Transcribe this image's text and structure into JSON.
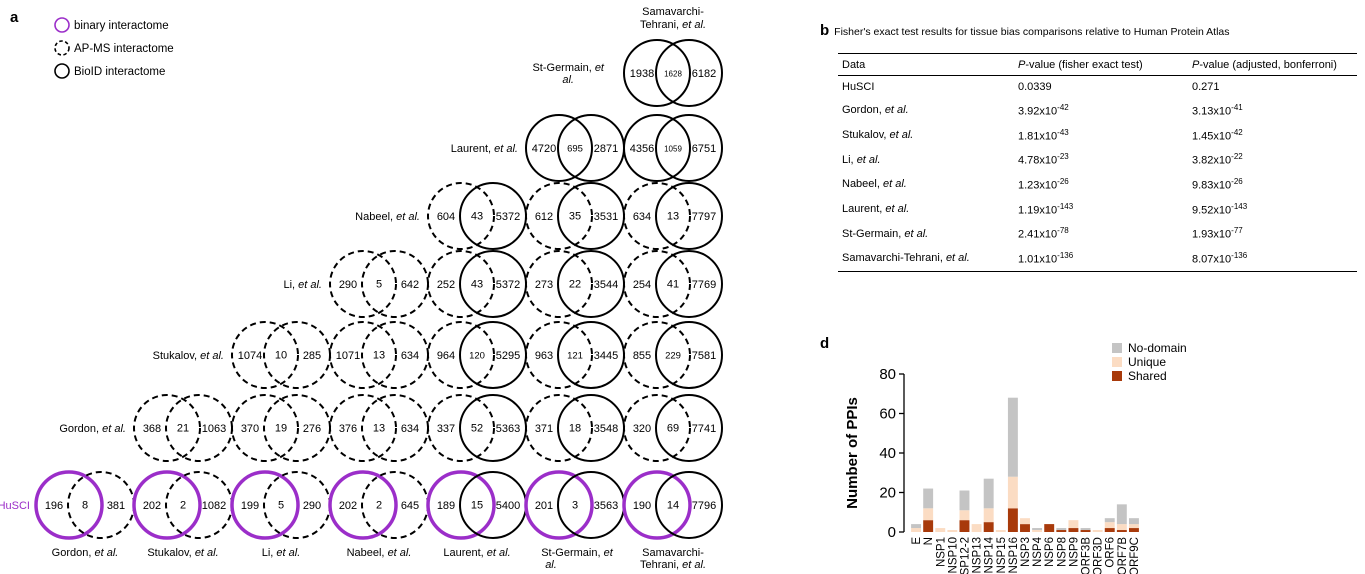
{
  "panel_a": {
    "letter": "a",
    "legend": [
      {
        "label": "binary interactome",
        "style": "binary"
      },
      {
        "label": "AP-MS interactome",
        "style": "apms"
      },
      {
        "label": "BioID interactome",
        "style": "bioid"
      }
    ],
    "row_labels": [
      {
        "main": "St-Germain,",
        "italic": "et",
        "line2": "al.",
        "row": 0
      },
      {
        "main": "Laurent,",
        "italic": "et al.",
        "line2": "",
        "row": 1
      },
      {
        "main": "Nabeel,",
        "italic": "et al.",
        "line2": "",
        "row": 2
      },
      {
        "main": "Li,",
        "italic": "et al.",
        "line2": "",
        "row": 3
      },
      {
        "main": "Stukalov,",
        "italic": "et al.",
        "line2": "",
        "row": 4
      },
      {
        "main": "Gordon,",
        "italic": "et al.",
        "line2": "",
        "row": 5
      },
      {
        "main": "HuSCI",
        "italic": "",
        "line2": "",
        "row": 6
      }
    ],
    "column_labels": [
      {
        "line1": "Gordon,",
        "italic1": "et al.",
        "line2": ""
      },
      {
        "line1": "Stukalov,",
        "italic1": "et al.",
        "line2": ""
      },
      {
        "line1": "Li,",
        "italic1": "et al.",
        "line2": ""
      },
      {
        "line1": "Nabeel,",
        "italic1": "et al.",
        "line2": ""
      },
      {
        "line1": "Laurent,",
        "italic1": "et al.",
        "line2": ""
      },
      {
        "line1": "St-Germain,",
        "italic1": "et",
        "line2": "al."
      },
      {
        "line1": "Samavarchi-",
        "italic1": "",
        "line2": "Tehrani,",
        "italic2": "et al."
      }
    ],
    "top_label": {
      "line1": "Samavarchi-",
      "line2": "Tehrani,",
      "italic2": "et al."
    },
    "venns": [
      {
        "row": 0,
        "col": 6,
        "left": "1938",
        "mid": "1628",
        "right": "6182",
        "ls": "bioid",
        "rs": "bioid"
      },
      {
        "row": 1,
        "col": 5,
        "left": "4720",
        "mid": "695",
        "right": "2871",
        "ls": "bioid",
        "rs": "bioid"
      },
      {
        "row": 1,
        "col": 6,
        "left": "4356",
        "mid": "1059",
        "right": "6751",
        "ls": "bioid",
        "rs": "bioid"
      },
      {
        "row": 2,
        "col": 4,
        "left": "604",
        "mid": "43",
        "right": "5372",
        "ls": "apms",
        "rs": "bioid"
      },
      {
        "row": 2,
        "col": 5,
        "left": "612",
        "mid": "35",
        "right": "3531",
        "ls": "apms",
        "rs": "bioid"
      },
      {
        "row": 2,
        "col": 6,
        "left": "634",
        "mid": "13",
        "right": "7797",
        "ls": "apms",
        "rs": "bioid"
      },
      {
        "row": 3,
        "col": 3,
        "left": "290",
        "mid": "5",
        "right": "642",
        "ls": "apms",
        "rs": "apms"
      },
      {
        "row": 3,
        "col": 4,
        "left": "252",
        "mid": "43",
        "right": "5372",
        "ls": "apms",
        "rs": "bioid"
      },
      {
        "row": 3,
        "col": 5,
        "left": "273",
        "mid": "22",
        "right": "3544",
        "ls": "apms",
        "rs": "bioid"
      },
      {
        "row": 3,
        "col": 6,
        "left": "254",
        "mid": "41",
        "right": "7769",
        "ls": "apms",
        "rs": "bioid"
      },
      {
        "row": 4,
        "col": 2,
        "left": "1074",
        "mid": "10",
        "right": "285",
        "ls": "apms",
        "rs": "apms"
      },
      {
        "row": 4,
        "col": 3,
        "left": "1071",
        "mid": "13",
        "right": "634",
        "ls": "apms",
        "rs": "apms"
      },
      {
        "row": 4,
        "col": 4,
        "left": "964",
        "mid": "120",
        "right": "5295",
        "ls": "apms",
        "rs": "bioid"
      },
      {
        "row": 4,
        "col": 5,
        "left": "963",
        "mid": "121",
        "right": "3445",
        "ls": "apms",
        "rs": "bioid"
      },
      {
        "row": 4,
        "col": 6,
        "left": "855",
        "mid": "229",
        "right": "7581",
        "ls": "apms",
        "rs": "bioid"
      },
      {
        "row": 5,
        "col": 1,
        "left": "368",
        "mid": "21",
        "right": "1063",
        "ls": "apms",
        "rs": "apms"
      },
      {
        "row": 5,
        "col": 2,
        "left": "370",
        "mid": "19",
        "right": "276",
        "ls": "apms",
        "rs": "apms"
      },
      {
        "row": 5,
        "col": 3,
        "left": "376",
        "mid": "13",
        "right": "634",
        "ls": "apms",
        "rs": "apms"
      },
      {
        "row": 5,
        "col": 4,
        "left": "337",
        "mid": "52",
        "right": "5363",
        "ls": "apms",
        "rs": "bioid"
      },
      {
        "row": 5,
        "col": 5,
        "left": "371",
        "mid": "18",
        "right": "3548",
        "ls": "apms",
        "rs": "bioid"
      },
      {
        "row": 5,
        "col": 6,
        "left": "320",
        "mid": "69",
        "right": "7741",
        "ls": "apms",
        "rs": "bioid"
      },
      {
        "row": 6,
        "col": 0,
        "left": "196",
        "mid": "8",
        "right": "381",
        "ls": "binary",
        "rs": "apms"
      },
      {
        "row": 6,
        "col": 1,
        "left": "202",
        "mid": "2",
        "right": "1082",
        "ls": "binary",
        "rs": "apms"
      },
      {
        "row": 6,
        "col": 2,
        "left": "199",
        "mid": "5",
        "right": "290",
        "ls": "binary",
        "rs": "apms"
      },
      {
        "row": 6,
        "col": 3,
        "left": "202",
        "mid": "2",
        "right": "645",
        "ls": "binary",
        "rs": "apms"
      },
      {
        "row": 6,
        "col": 4,
        "left": "189",
        "mid": "15",
        "right": "5400",
        "ls": "binary",
        "rs": "bioid"
      },
      {
        "row": 6,
        "col": 5,
        "left": "201",
        "mid": "3",
        "right": "3563",
        "ls": "binary",
        "rs": "bioid"
      },
      {
        "row": 6,
        "col": 6,
        "left": "190",
        "mid": "14",
        "right": "7796",
        "ls": "binary",
        "rs": "bioid"
      }
    ],
    "colors": {
      "binary": "#9b2ec9",
      "line": "#000000"
    }
  },
  "panel_b": {
    "letter": "b",
    "title": "Fisher's exact test results for tissue bias comparisons relative to Human Protein Atlas",
    "headers": [
      {
        "pre": "Data",
        "it": "",
        "post": ""
      },
      {
        "pre": "",
        "it": "P",
        "post": "-value (fisher exact test)"
      },
      {
        "pre": "",
        "it": "P",
        "post": "-value (adjusted, bonferroni)"
      }
    ],
    "rows": [
      {
        "name": "HuSCI",
        "name_it": "",
        "p1": "0.0339",
        "e1": "",
        "p2": "0.271",
        "e2": ""
      },
      {
        "name": "Gordon, ",
        "name_it": "et al.",
        "p1": "3.92x10",
        "e1": "-42",
        "p2": "3.13x10",
        "e2": "-41"
      },
      {
        "name": "Stukalov, ",
        "name_it": "et al.",
        "p1": "1.81x10",
        "e1": "-43",
        "p2": "1.45x10",
        "e2": "-42"
      },
      {
        "name": "Li, ",
        "name_it": "et al.",
        "p1": "4.78x10",
        "e1": "-23",
        "p2": "3.82x10",
        "e2": "-22"
      },
      {
        "name": "Nabeel, ",
        "name_it": "et al.",
        "p1": "1.23x10",
        "e1": "-26",
        "p2": "9.83x10",
        "e2": "-26"
      },
      {
        "name": "Laurent, ",
        "name_it": "et al.",
        "p1": "1.19x10",
        "e1": "-143",
        "p2": "9.52x10",
        "e2": "-143"
      },
      {
        "name": "St-Germain, ",
        "name_it": "et al.",
        "p1": "2.41x10",
        "e1": "-78",
        "p2": "1.93x10",
        "e2": "-77"
      },
      {
        "name": "Samavarchi-Tehrani, ",
        "name_it": "et al.",
        "p1": "1.01x10",
        "e1": "-136",
        "p2": "8.07x10",
        "e2": "-136"
      }
    ]
  },
  "panel_d": {
    "letter": "d",
    "chart_data": {
      "type": "bar",
      "stacked": true,
      "ylabel": "Number of PPIs",
      "xlabel": "",
      "ylim": [
        0,
        80
      ],
      "yticks": [
        0,
        20,
        40,
        60,
        80
      ],
      "categories": [
        "E",
        "N",
        "NSP1",
        "NSP10",
        "NSP12-2",
        "NSP13",
        "NSP14",
        "NSP15",
        "NSP16",
        "NSP3",
        "NSP4",
        "NSP6",
        "NSP8",
        "NSP9",
        "ORF3B",
        "ORF3D",
        "ORF6",
        "ORF7B",
        "ORF9C"
      ],
      "series": [
        {
          "name": "Shared",
          "color": "#a83a0b",
          "values": [
            0,
            6,
            0,
            0,
            6,
            0,
            5,
            0,
            12,
            4,
            0,
            4,
            1,
            2,
            1,
            0,
            2,
            1,
            2
          ]
        },
        {
          "name": "Unique",
          "color": "#fbdcc3",
          "values": [
            2,
            6,
            2,
            1,
            5,
            4,
            7,
            1,
            16,
            3,
            1,
            0,
            0,
            4,
            0,
            1,
            3,
            3,
            2
          ]
        },
        {
          "name": "No-domain",
          "color": "#c4c4c4",
          "values": [
            2,
            10,
            0,
            0,
            10,
            0,
            15,
            0,
            40,
            0,
            1,
            0,
            1,
            0,
            1,
            0,
            2,
            10,
            3
          ]
        }
      ],
      "legend": [
        "No-domain",
        "Unique",
        "Shared"
      ],
      "legend_position": "top-right"
    }
  }
}
